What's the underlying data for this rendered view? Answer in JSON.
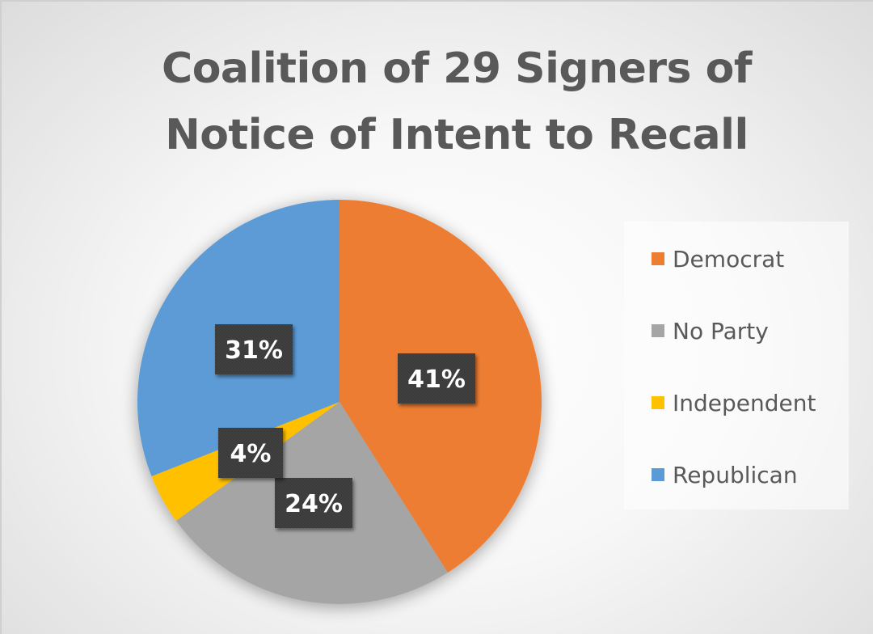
{
  "chart_data": {
    "type": "pie",
    "title": [
      "Coalition of 29 Signers of",
      "Notice of Intent to Recall"
    ],
    "start_angle_deg": 0,
    "direction": "clockwise",
    "slices": [
      {
        "label": "Democrat",
        "value": 41,
        "data_label": "41%",
        "color": "#ED7D31"
      },
      {
        "label": "No Party",
        "value": 24,
        "data_label": "24%",
        "color": "#A5A5A5"
      },
      {
        "label": "Independent",
        "value": 4,
        "data_label": "4%",
        "color": "#FFC000"
      },
      {
        "label": "Republican",
        "value": 31,
        "data_label": "31%",
        "color": "#5B9BD5"
      }
    ],
    "legend_position": "right",
    "data_label_style": {
      "background": "#404040",
      "text_color": "#ffffff"
    }
  }
}
